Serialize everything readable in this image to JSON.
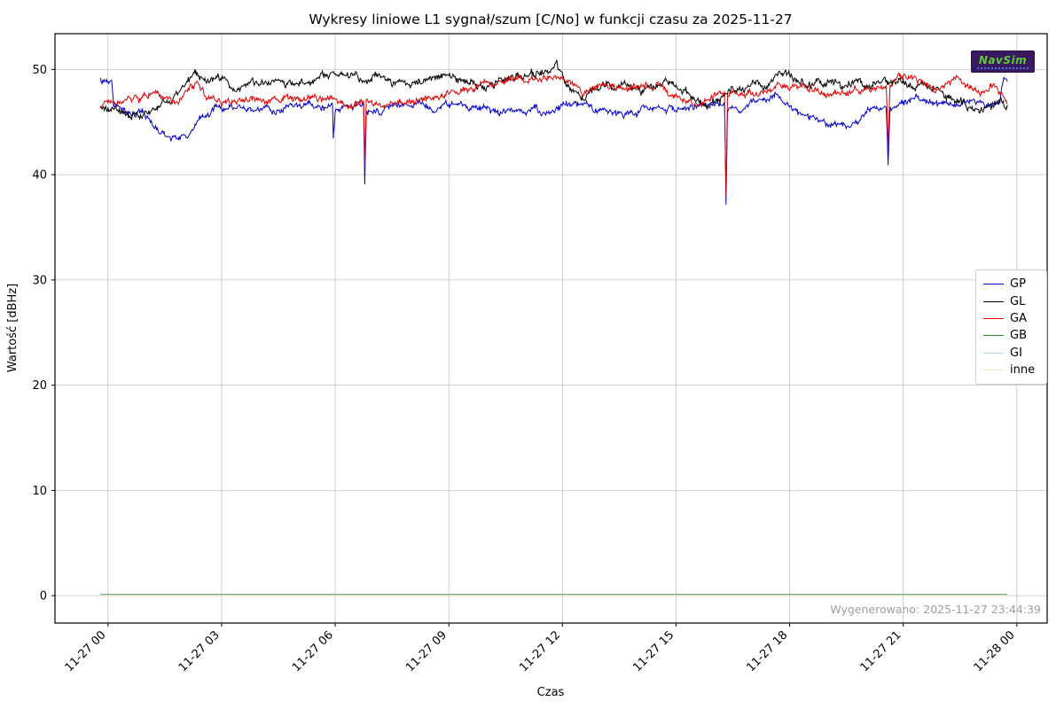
{
  "logo": {
    "text": "NavSim"
  },
  "chart_data": {
    "type": "line",
    "title": "Wykresy liniowe L1 sygnał/szum [C/No] w funkcji czasu za 2025-11-27",
    "xlabel": "Czas",
    "ylabel": "Wartość [dBHz]",
    "annotation": "Wygenerowano: 2025-11-27 23:44:39",
    "grid": true,
    "legend_position": "right",
    "xlim_hours": [
      -1.4,
      24.8
    ],
    "ylim": [
      -2.6,
      53.4
    ],
    "yticks": [
      0,
      10,
      20,
      30,
      40,
      50
    ],
    "xtick_hours": [
      0,
      3,
      6,
      9,
      12,
      15,
      18,
      21,
      24
    ],
    "xtick_labels": [
      "11-27 00",
      "11-27 03",
      "11-27 06",
      "11-27 09",
      "11-27 12",
      "11-27 15",
      "11-27 18",
      "11-27 21",
      "11-28 00"
    ],
    "series": [
      {
        "name": "GP",
        "color": "#0000cc",
        "noise": 0.42,
        "points": [
          [
            -0.2,
            48.9
          ],
          [
            0.1,
            48.8
          ],
          [
            0.15,
            46.8
          ],
          [
            0.5,
            46.2
          ],
          [
            0.9,
            45.8
          ],
          [
            1.3,
            44.2
          ],
          [
            1.7,
            43.6
          ],
          [
            2.1,
            43.8
          ],
          [
            2.5,
            45.5
          ],
          [
            2.8,
            46.3
          ],
          [
            3.2,
            46.4
          ],
          [
            3.7,
            46.0
          ],
          [
            4.2,
            46.3
          ],
          [
            4.7,
            46.2
          ],
          [
            5.2,
            46.4
          ],
          [
            5.7,
            46.3
          ],
          [
            5.93,
            46.2
          ],
          [
            5.95,
            43.3
          ],
          [
            6.0,
            45.9
          ],
          [
            6.3,
            46.4
          ],
          [
            6.75,
            46.3
          ],
          [
            6.78,
            39.1
          ],
          [
            6.82,
            46.2
          ],
          [
            7.3,
            46.4
          ],
          [
            7.8,
            46.5
          ],
          [
            8.3,
            46.6
          ],
          [
            8.8,
            46.4
          ],
          [
            9.3,
            46.6
          ],
          [
            9.8,
            46.4
          ],
          [
            10.3,
            46.0
          ],
          [
            10.8,
            46.2
          ],
          [
            11.3,
            46.2
          ],
          [
            11.8,
            45.8
          ],
          [
            12.1,
            46.9
          ],
          [
            12.4,
            46.5
          ],
          [
            12.9,
            46.2
          ],
          [
            13.4,
            46.0
          ],
          [
            13.9,
            46.2
          ],
          [
            14.4,
            46.4
          ],
          [
            14.9,
            46.2
          ],
          [
            15.4,
            46.3
          ],
          [
            15.9,
            46.4
          ],
          [
            16.28,
            46.3
          ],
          [
            16.32,
            37.3
          ],
          [
            16.36,
            46.2
          ],
          [
            16.8,
            46.4
          ],
          [
            17.3,
            47.3
          ],
          [
            17.6,
            47.5
          ],
          [
            18.0,
            46.4
          ],
          [
            18.5,
            45.2
          ],
          [
            19.0,
            44.9
          ],
          [
            19.5,
            44.6
          ],
          [
            20.0,
            45.6
          ],
          [
            20.3,
            46.4
          ],
          [
            20.55,
            46.5
          ],
          [
            20.6,
            41.0
          ],
          [
            20.65,
            46.4
          ],
          [
            21.0,
            46.9
          ],
          [
            21.4,
            47.3
          ],
          [
            21.8,
            46.9
          ],
          [
            22.2,
            46.6
          ],
          [
            22.6,
            46.9
          ],
          [
            23.0,
            46.8
          ],
          [
            23.3,
            46.6
          ],
          [
            23.55,
            46.8
          ],
          [
            23.65,
            49.4
          ],
          [
            23.75,
            49.2
          ]
        ]
      },
      {
        "name": "GL",
        "color": "#000000",
        "noise": 0.48,
        "points": [
          [
            -0.2,
            46.3
          ],
          [
            0.3,
            45.7
          ],
          [
            0.8,
            45.6
          ],
          [
            1.3,
            46.3
          ],
          [
            1.8,
            47.5
          ],
          [
            2.3,
            49.4
          ],
          [
            2.7,
            48.8
          ],
          [
            3.2,
            48.3
          ],
          [
            3.7,
            48.6
          ],
          [
            4.2,
            48.9
          ],
          [
            4.7,
            48.6
          ],
          [
            5.2,
            49.0
          ],
          [
            5.7,
            49.3
          ],
          [
            6.2,
            49.4
          ],
          [
            6.7,
            48.9
          ],
          [
            7.2,
            48.9
          ],
          [
            7.7,
            48.4
          ],
          [
            8.2,
            48.9
          ],
          [
            8.7,
            48.9
          ],
          [
            9.2,
            49.1
          ],
          [
            9.7,
            49.0
          ],
          [
            10.2,
            48.6
          ],
          [
            10.7,
            48.9
          ],
          [
            11.2,
            49.3
          ],
          [
            11.6,
            49.9
          ],
          [
            11.85,
            50.6
          ],
          [
            12.0,
            49.0
          ],
          [
            12.3,
            47.6
          ],
          [
            12.6,
            47.3
          ],
          [
            12.9,
            48.1
          ],
          [
            13.3,
            48.4
          ],
          [
            13.7,
            48.6
          ],
          [
            14.1,
            48.3
          ],
          [
            14.5,
            48.6
          ],
          [
            14.9,
            48.5
          ],
          [
            15.3,
            47.4
          ],
          [
            15.7,
            46.9
          ],
          [
            16.1,
            47.3
          ],
          [
            16.5,
            47.9
          ],
          [
            16.9,
            48.4
          ],
          [
            17.3,
            48.6
          ],
          [
            17.8,
            49.6
          ],
          [
            18.2,
            48.9
          ],
          [
            18.6,
            48.6
          ],
          [
            19.0,
            48.9
          ],
          [
            19.4,
            48.4
          ],
          [
            19.8,
            48.6
          ],
          [
            20.2,
            48.4
          ],
          [
            20.6,
            48.8
          ],
          [
            21.0,
            48.9
          ],
          [
            21.4,
            48.4
          ],
          [
            21.8,
            47.9
          ],
          [
            22.2,
            47.3
          ],
          [
            22.6,
            46.9
          ],
          [
            23.0,
            46.6
          ],
          [
            23.4,
            46.9
          ],
          [
            23.75,
            46.3
          ]
        ]
      },
      {
        "name": "GA",
        "color": "#e00000",
        "noise": 0.42,
        "points": [
          [
            -0.2,
            46.6
          ],
          [
            0.3,
            46.9
          ],
          [
            0.8,
            47.3
          ],
          [
            1.3,
            47.4
          ],
          [
            1.7,
            47.0
          ],
          [
            2.1,
            48.0
          ],
          [
            2.35,
            48.9
          ],
          [
            2.6,
            47.4
          ],
          [
            3.0,
            46.9
          ],
          [
            3.4,
            47.1
          ],
          [
            3.8,
            47.3
          ],
          [
            4.2,
            47.4
          ],
          [
            4.6,
            47.3
          ],
          [
            5.0,
            47.4
          ],
          [
            5.4,
            47.6
          ],
          [
            5.8,
            47.3
          ],
          [
            6.2,
            46.9
          ],
          [
            6.5,
            46.6
          ],
          [
            6.75,
            46.9
          ],
          [
            6.78,
            40.6
          ],
          [
            6.82,
            46.9
          ],
          [
            7.2,
            46.9
          ],
          [
            7.6,
            47.1
          ],
          [
            8.0,
            46.9
          ],
          [
            8.4,
            47.1
          ],
          [
            8.8,
            47.3
          ],
          [
            9.2,
            47.9
          ],
          [
            9.6,
            48.3
          ],
          [
            10.0,
            48.6
          ],
          [
            10.4,
            48.9
          ],
          [
            10.8,
            48.9
          ],
          [
            11.2,
            49.3
          ],
          [
            11.6,
            49.4
          ],
          [
            12.0,
            49.4
          ],
          [
            12.3,
            48.6
          ],
          [
            12.6,
            47.9
          ],
          [
            12.9,
            48.3
          ],
          [
            13.3,
            48.4
          ],
          [
            13.7,
            48.3
          ],
          [
            14.1,
            48.4
          ],
          [
            14.5,
            48.3
          ],
          [
            14.9,
            47.6
          ],
          [
            15.3,
            47.1
          ],
          [
            15.7,
            46.9
          ],
          [
            16.1,
            47.3
          ],
          [
            16.28,
            47.4
          ],
          [
            16.32,
            37.6
          ],
          [
            16.36,
            47.3
          ],
          [
            16.7,
            47.6
          ],
          [
            17.1,
            47.6
          ],
          [
            17.5,
            47.9
          ],
          [
            17.9,
            48.1
          ],
          [
            18.3,
            48.3
          ],
          [
            18.7,
            47.9
          ],
          [
            19.1,
            47.6
          ],
          [
            19.5,
            47.9
          ],
          [
            19.9,
            48.3
          ],
          [
            20.3,
            48.6
          ],
          [
            20.55,
            48.9
          ],
          [
            20.6,
            43.0
          ],
          [
            20.65,
            48.8
          ],
          [
            20.9,
            49.3
          ],
          [
            21.2,
            49.4
          ],
          [
            21.5,
            48.6
          ],
          [
            21.8,
            48.1
          ],
          [
            22.1,
            48.4
          ],
          [
            22.4,
            49.4
          ],
          [
            22.7,
            48.3
          ],
          [
            23.0,
            47.9
          ],
          [
            23.3,
            48.3
          ],
          [
            23.6,
            48.1
          ],
          [
            23.75,
            47.3
          ]
        ]
      },
      {
        "name": "GB",
        "color": "#228b22",
        "noise": 0,
        "points": [
          [
            -0.2,
            0.1
          ],
          [
            23.75,
            0.1
          ]
        ]
      },
      {
        "name": "GI",
        "color": "#add8e6",
        "noise": 0,
        "points": [
          [
            -0.2,
            0.05
          ],
          [
            23.75,
            0.05
          ]
        ]
      },
      {
        "name": "inne",
        "color": "#ffdead",
        "noise": 0,
        "points": [
          [
            -0.2,
            0.0
          ],
          [
            23.75,
            0.0
          ]
        ]
      }
    ]
  }
}
